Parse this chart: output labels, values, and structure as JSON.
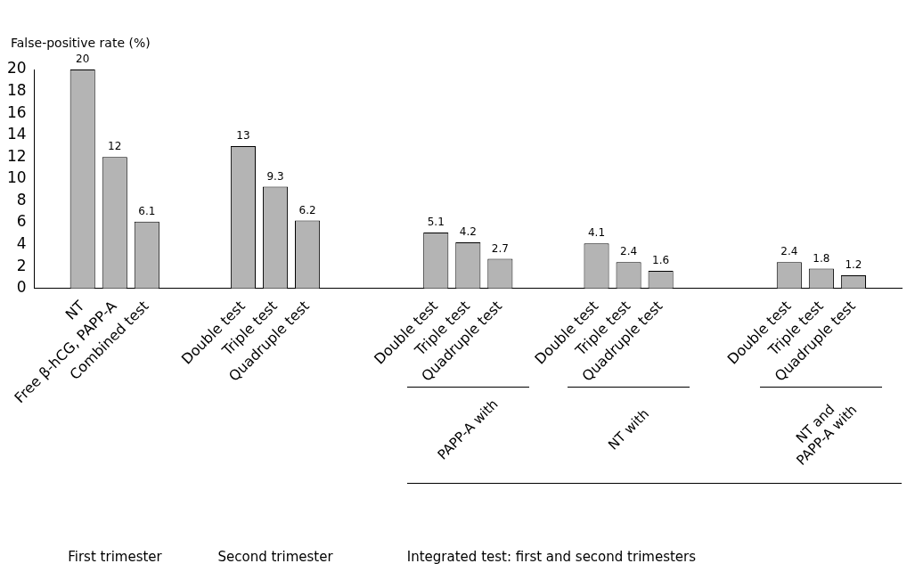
{
  "chart_data": {
    "type": "bar",
    "ylabel": "False-positive rate (%)",
    "categories": [
      null,
      "NT",
      "Free β-hCG, PAPP-A",
      "Combined test",
      null,
      null,
      "Double test",
      "Triple test",
      "Quadruple test",
      null,
      null,
      null,
      "Double test",
      "Triple test",
      "Quadruple test",
      null,
      null,
      "Double test",
      "Triple test",
      "Quadruple test",
      null,
      null,
      null,
      "Double test",
      "Triple test",
      "Quadruple test",
      null
    ],
    "values": [
      null,
      20,
      12,
      6.1,
      null,
      null,
      13,
      9.3,
      6.2,
      null,
      null,
      null,
      5.1,
      4.2,
      2.7,
      null,
      null,
      4.1,
      2.4,
      1.6,
      null,
      null,
      null,
      2.4,
      1.8,
      1.2,
      null
    ],
    "color": "#b4b4b4",
    "ylim": [
      0,
      20
    ],
    "yticks": [
      0,
      2,
      4,
      6,
      8,
      10,
      12,
      14,
      16,
      18,
      20
    ],
    "grid": false,
    "legend": false,
    "data_labels": true,
    "annotations": [
      "PAPP-A with",
      "NT with",
      "NT and PAPP-A with",
      "First trimester",
      "Second trimester",
      "Integrated test: first and second trimesters"
    ]
  }
}
